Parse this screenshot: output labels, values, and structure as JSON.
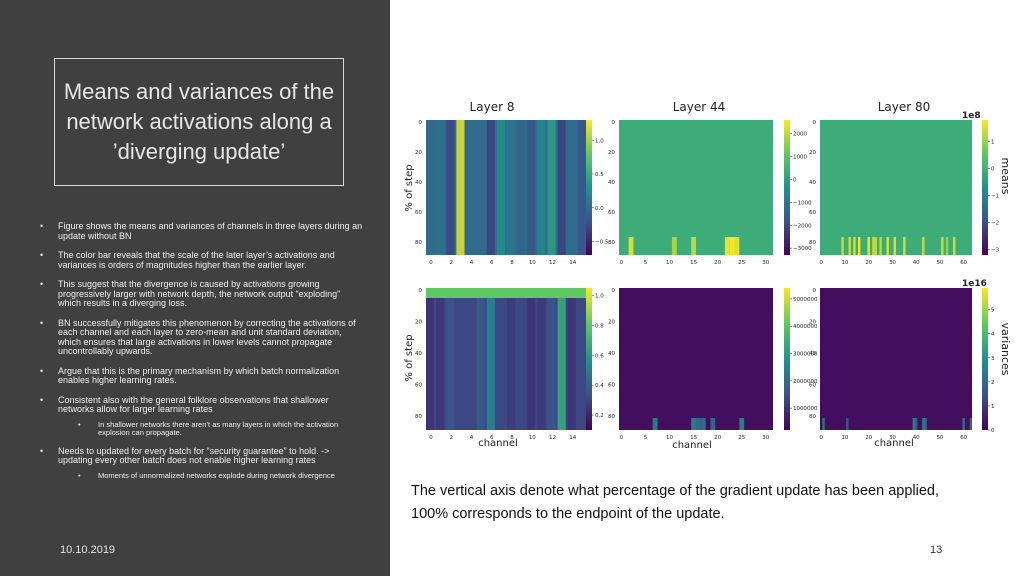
{
  "slide": {
    "title": "Means and variances of the network activations along a ’diverging update’",
    "bullets": [
      {
        "text": "Figure shows the means and variances of channels in three layers  during an update without BN",
        "sub": false
      },
      {
        "text": "The color bar reveals that the scale of the later layer’s activations and variances is orders of magnitudes higher than the earlier layer.",
        "sub": false
      },
      {
        "text": "This suggest that the divergence is caused by activations growing progressively larger with network depth,  the network output “exploding” which results in a diverging loss.",
        "sub": false
      },
      {
        "text": "BN successfully mitigates this phenomenon by correcting the activations of each channel and each layer to zero-mean and unit standard deviation, which ensures that large activations in lower levels cannot propagate uncontrollably upwards.",
        "sub": false
      },
      {
        "text": "Argue that this is the primary mechanism by which batch normalization enables higher learning rates.",
        "sub": false
      },
      {
        "text": "Consistent also with the general folklore observations that shallower networks allow for larger learning rates",
        "sub": false
      },
      {
        "text": "In shallower networks there aren’t as many layers in which the activation explosion can propagate.",
        "sub": true
      },
      {
        "text": "Needs to updated for every batch for “security guarantee” to hold. -> updating every other batch does not enable higher learning rates",
        "sub": false
      },
      {
        "text": "Moments of unnormalized networks explode during network divergence",
        "sub": true
      }
    ],
    "date": "10.10.2019",
    "page_number": "13",
    "caption": "The vertical axis denote what percentage of the gradient update has been applied, 100% corresponds to the endpoint of the update."
  },
  "chart_data": {
    "type": "heatmap",
    "column_titles": [
      "Layer 8",
      "Layer 44",
      "Layer 80"
    ],
    "row_labels": [
      "means",
      "variances"
    ],
    "ylabel": "% of step",
    "xlabel": "channel",
    "y_ticks": [
      "0",
      "20",
      "40",
      "60",
      "80"
    ],
    "x_ticks": [
      [
        "0",
        "2",
        "4",
        "6",
        "8",
        "10",
        "12",
        "14"
      ],
      [
        "0",
        "5",
        "10",
        "15",
        "20",
        "25",
        "30"
      ],
      [
        "0",
        "10",
        "20",
        "30",
        "40",
        "50",
        "60"
      ]
    ],
    "colorbars": {
      "means": [
        {
          "ticks": [
            "1.0",
            "0.5",
            "0.0",
            "−0.5"
          ],
          "values": [
            1.0,
            0.5,
            0.0,
            -0.5
          ],
          "range": [
            -0.7,
            1.3
          ]
        },
        {
          "ticks": [
            "2000",
            "1000",
            "0",
            "−1000",
            "−2000",
            "−3000"
          ],
          "values": [
            2000,
            1000,
            0,
            -1000,
            -2000,
            -3000
          ],
          "range": [
            -3300,
            2600
          ]
        },
        {
          "ticks": [
            "1",
            "0",
            "−1",
            "−2",
            "−3"
          ],
          "values": [
            1,
            0,
            -1,
            -2,
            -3
          ],
          "range": [
            -3.2,
            1.8
          ],
          "scale": "1e8"
        }
      ],
      "variances": [
        {
          "ticks": [
            "1.0",
            "0.8",
            "0.6",
            "0.4",
            "0.2"
          ],
          "values": [
            1.0,
            0.8,
            0.6,
            0.4,
            0.2
          ],
          "range": [
            0.1,
            1.05
          ]
        },
        {
          "ticks": [
            "5000000",
            "4000000",
            "3000000",
            "2000000",
            "1000000"
          ],
          "values": [
            5000000,
            4000000,
            3000000,
            2000000,
            1000000
          ],
          "range": [
            200000,
            5400000
          ]
        },
        {
          "ticks": [
            "5",
            "4",
            "3",
            "2",
            "1",
            "0"
          ],
          "values": [
            5,
            4,
            3,
            2,
            1,
            0
          ],
          "range": [
            0,
            5.9
          ],
          "scale": "1e16"
        }
      ]
    },
    "colormap": [
      "#440154",
      "#3b528b",
      "#21918c",
      "#5ec962",
      "#fde725"
    ]
  }
}
